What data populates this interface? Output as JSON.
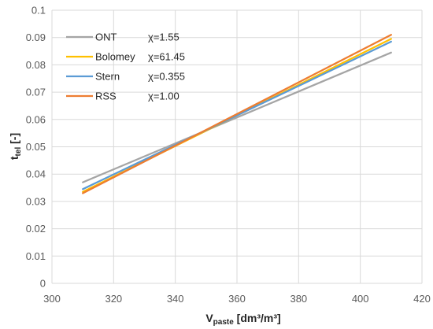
{
  "chart_data": {
    "type": "line",
    "xlabel_main": "V",
    "xlabel_sub": "paste",
    "xlabel_unit": " [dm³/m³]",
    "ylabel_main": "t",
    "ylabel_sub": "tel",
    "ylabel_unit": " [-]",
    "xlim": [
      300,
      420
    ],
    "ylim": [
      0,
      0.1
    ],
    "x_ticks": [
      "300",
      "320",
      "340",
      "360",
      "380",
      "400",
      "420"
    ],
    "y_ticks": [
      "0",
      "0.01",
      "0.02",
      "0.03",
      "0.04",
      "0.05",
      "0.06",
      "0.07",
      "0.08",
      "0.09",
      "0.1"
    ],
    "grid": true,
    "legend_position": "top-left",
    "series": [
      {
        "name": "ONT",
        "chi_label": "χ=1.55",
        "color": "#a5a5a5",
        "x": [
          310,
          410
        ],
        "y": [
          0.037,
          0.0845
        ]
      },
      {
        "name": "Bolomey",
        "chi_label": "χ=61.45",
        "color": "#ffc000",
        "x": [
          310,
          410
        ],
        "y": [
          0.0335,
          0.0895
        ]
      },
      {
        "name": "Stern",
        "chi_label": "χ=0.355",
        "color": "#5b9bd5",
        "x": [
          310,
          410
        ],
        "y": [
          0.0345,
          0.0885
        ]
      },
      {
        "name": "RSS",
        "chi_label": "χ=1.00",
        "color": "#ed7d31",
        "x": [
          310,
          410
        ],
        "y": [
          0.033,
          0.091
        ]
      }
    ]
  }
}
